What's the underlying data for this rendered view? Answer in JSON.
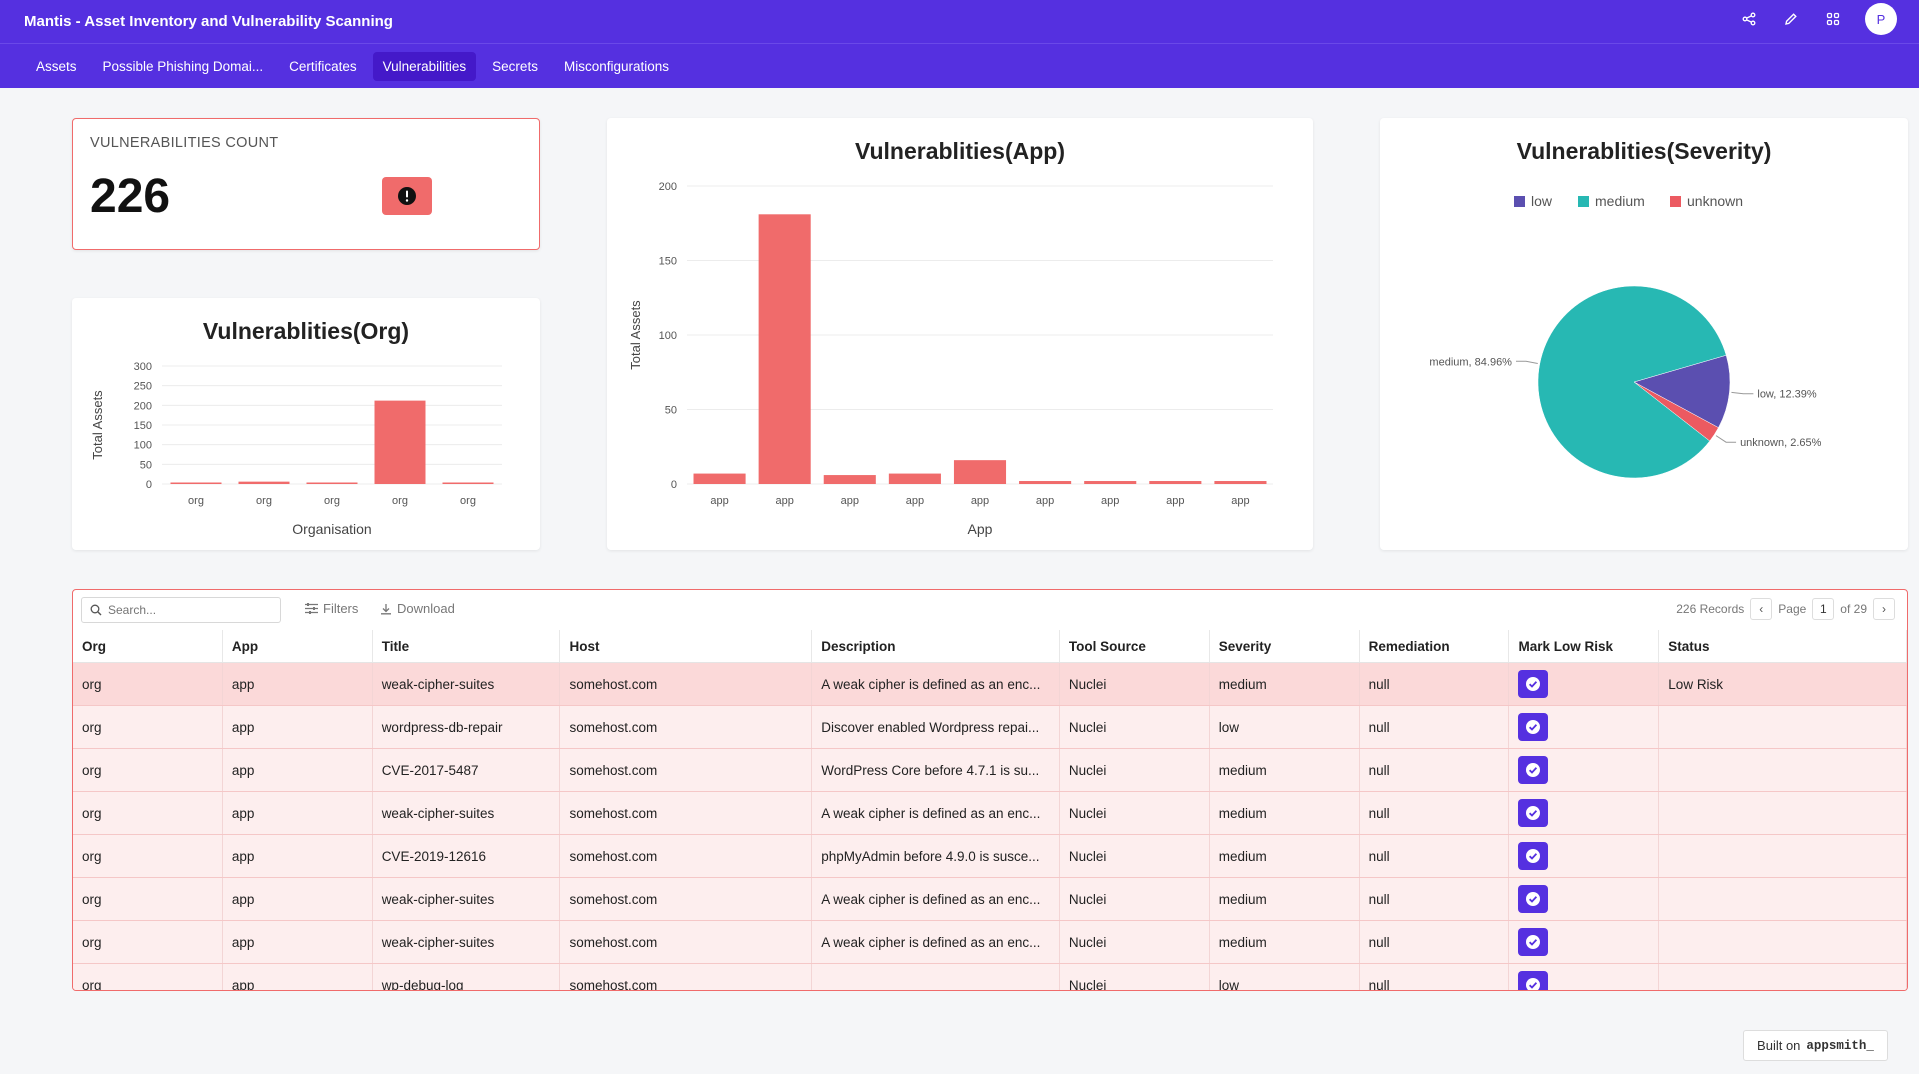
{
  "header": {
    "title": "Mantis - Asset Inventory and Vulnerability Scanning",
    "avatar_initial": "P"
  },
  "nav": {
    "tabs": [
      {
        "label": "Assets"
      },
      {
        "label": "Possible Phishing Domai..."
      },
      {
        "label": "Certificates"
      },
      {
        "label": "Vulnerabilities",
        "active": true
      },
      {
        "label": "Secrets"
      },
      {
        "label": "Misconfigurations"
      }
    ]
  },
  "count_card": {
    "label": "VULNERABILITIES COUNT",
    "value": "226"
  },
  "colors": {
    "brand": "#5530e0",
    "bar": "#f06b6b",
    "pie_low": "#5b4fb0",
    "pie_medium": "#27b8b3",
    "pie_unknown": "#ec5a61"
  },
  "chart_data": [
    {
      "id": "org",
      "type": "bar",
      "title": "Vulnerablities(Org)",
      "xlabel": "Organisation",
      "ylabel": "Total Assets",
      "categories": [
        "org",
        "org",
        "org",
        "org",
        "org"
      ],
      "values": [
        2,
        6,
        1,
        212,
        3
      ],
      "ylim": [
        0,
        300
      ],
      "yticks": [
        0,
        50,
        100,
        150,
        200,
        250,
        300
      ]
    },
    {
      "id": "app",
      "type": "bar",
      "title": "Vulnerablities(App)",
      "xlabel": "App",
      "ylabel": "Total Assets",
      "categories": [
        "app",
        "app",
        "app",
        "app",
        "app",
        "app",
        "app",
        "app",
        "app"
      ],
      "values": [
        7,
        181,
        6,
        7,
        16,
        2,
        2,
        2,
        2
      ],
      "ylim": [
        0,
        200
      ],
      "yticks": [
        0,
        50,
        100,
        150,
        200
      ]
    },
    {
      "id": "severity",
      "type": "pie",
      "title": "Vulnerablities(Severity)",
      "legend": [
        "low",
        "medium",
        "unknown"
      ],
      "slices": [
        {
          "label": "low",
          "value": 12.39,
          "text": "low, 12.39%"
        },
        {
          "label": "unknown",
          "value": 2.65,
          "text": "unknown, 2.65%"
        },
        {
          "label": "medium",
          "value": 84.96,
          "text": "medium, 84.96%"
        }
      ]
    }
  ],
  "table": {
    "search_placeholder": "Search...",
    "filters_label": "Filters",
    "download_label": "Download",
    "records": "226 Records",
    "page_label": "Page",
    "page_number": "1",
    "page_total": "of 29",
    "columns": [
      "Org",
      "App",
      "Title",
      "Host",
      "Description",
      "Tool Source",
      "Severity",
      "Remediation",
      "Mark Low Risk",
      "Status"
    ],
    "rows": [
      [
        "org",
        "app",
        "weak-cipher-suites",
        "somehost.com",
        "A weak cipher is defined as an enc...",
        "Nuclei",
        "medium",
        "null",
        "",
        "Low Risk"
      ],
      [
        "org",
        "app",
        "wordpress-db-repair",
        "somehost.com",
        "Discover enabled Wordpress repai...",
        "Nuclei",
        "low",
        "null",
        "",
        ""
      ],
      [
        "org",
        "app",
        "CVE-2017-5487",
        "somehost.com",
        "WordPress Core before 4.7.1 is su...",
        "Nuclei",
        "medium",
        "null",
        "",
        ""
      ],
      [
        "org",
        "app",
        "weak-cipher-suites",
        "somehost.com",
        "A weak cipher is defined as an enc...",
        "Nuclei",
        "medium",
        "null",
        "",
        ""
      ],
      [
        "org",
        "app",
        "CVE-2019-12616",
        "somehost.com",
        "phpMyAdmin before 4.9.0 is susce...",
        "Nuclei",
        "medium",
        "null",
        "",
        ""
      ],
      [
        "org",
        "app",
        "weak-cipher-suites",
        "somehost.com",
        "A weak cipher is defined as an enc...",
        "Nuclei",
        "medium",
        "null",
        "",
        ""
      ],
      [
        "org",
        "app",
        "weak-cipher-suites",
        "somehost.com",
        "A weak cipher is defined as an enc...",
        "Nuclei",
        "medium",
        "null",
        "",
        ""
      ],
      [
        "org",
        "app",
        "wp-debug-log",
        "somehost.com",
        "",
        "Nuclei",
        "low",
        "null",
        "",
        ""
      ]
    ]
  },
  "footer": {
    "built_on": "Built on",
    "brand": "appsmith_"
  }
}
